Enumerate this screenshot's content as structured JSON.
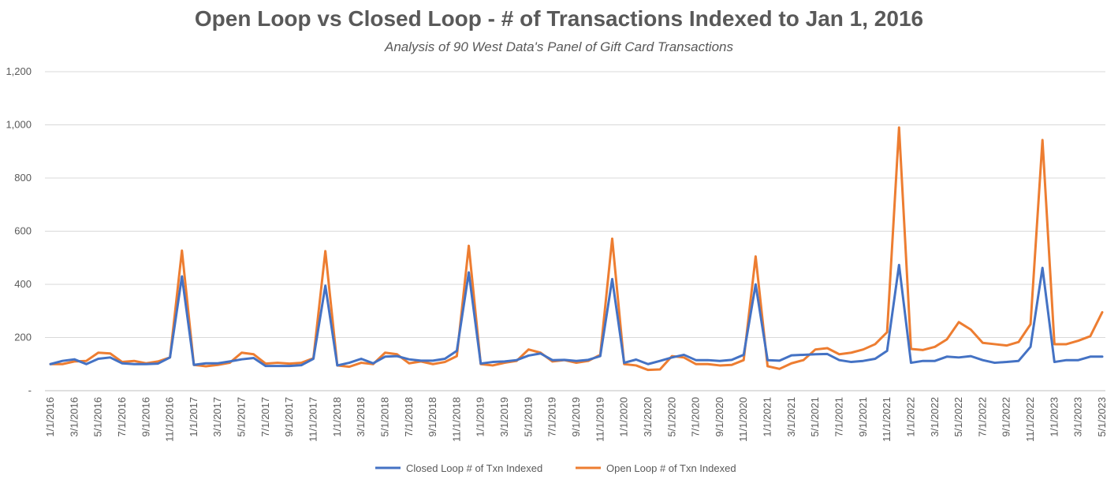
{
  "chart_data": {
    "type": "line",
    "title": "Open Loop vs Closed Loop - # of Transactions Indexed to Jan 1, 2016",
    "subtitle": "Analysis of 90 West Data's Panel of Gift Card Transactions",
    "xlabel": "",
    "ylabel": "",
    "ylim": [
      0,
      1200
    ],
    "y_ticks": [
      0,
      200,
      400,
      600,
      800,
      1000,
      1200
    ],
    "y_tick_labels": [
      "-",
      "200",
      "400",
      "600",
      "800",
      "1,000",
      "1,200"
    ],
    "grid": true,
    "legend_position": "bottom",
    "x_tick_labels": [
      "1/1/2016",
      "3/1/2016",
      "5/1/2016",
      "7/1/2016",
      "9/1/2016",
      "11/1/2016",
      "1/1/2017",
      "3/1/2017",
      "5/1/2017",
      "7/1/2017",
      "9/1/2017",
      "11/1/2017",
      "1/1/2018",
      "3/1/2018",
      "5/1/2018",
      "7/1/2018",
      "9/1/2018",
      "11/1/2018",
      "1/1/2019",
      "3/1/2019",
      "5/1/2019",
      "7/1/2019",
      "9/1/2019",
      "11/1/2019",
      "1/1/2020",
      "3/1/2020",
      "5/1/2020",
      "7/1/2020",
      "9/1/2020",
      "11/1/2020",
      "1/1/2021",
      "3/1/2021",
      "5/1/2021",
      "7/1/2021",
      "9/1/2021",
      "11/1/2021",
      "1/1/2022",
      "3/1/2022",
      "5/1/2022",
      "7/1/2022",
      "9/1/2022",
      "11/1/2022",
      "1/1/2023",
      "3/1/2023",
      "5/1/2023"
    ],
    "series": [
      {
        "name": "Closed Loop # of Txn Indexed",
        "color": "#4472C4",
        "values": [
          100,
          112,
          118,
          100,
          120,
          125,
          103,
          100,
          100,
          102,
          125,
          430,
          97,
          103,
          103,
          110,
          118,
          123,
          93,
          93,
          93,
          96,
          120,
          395,
          95,
          105,
          120,
          103,
          128,
          130,
          118,
          113,
          113,
          120,
          150,
          445,
          102,
          108,
          110,
          115,
          132,
          140,
          115,
          116,
          112,
          116,
          130,
          420,
          105,
          117,
          100,
          112,
          125,
          135,
          115,
          115,
          112,
          116,
          135,
          400,
          115,
          113,
          133,
          135,
          137,
          138,
          115,
          108,
          112,
          120,
          150,
          473,
          105,
          112,
          112,
          128,
          125,
          130,
          115,
          105,
          108,
          112,
          165,
          462,
          108,
          115,
          115,
          128,
          128
        ],
        "labels": []
      },
      {
        "name": "Open Loop # of Txn Indexed",
        "color": "#ED7D31",
        "values": [
          100,
          100,
          110,
          112,
          143,
          140,
          108,
          112,
          103,
          110,
          125,
          527,
          97,
          92,
          97,
          105,
          143,
          137,
          102,
          105,
          102,
          105,
          122,
          525,
          95,
          90,
          105,
          100,
          143,
          137,
          103,
          110,
          100,
          108,
          130,
          545,
          100,
          95,
          105,
          112,
          155,
          143,
          110,
          115,
          105,
          112,
          135,
          572,
          100,
          95,
          78,
          80,
          130,
          125,
          100,
          100,
          95,
          97,
          115,
          505,
          92,
          82,
          103,
          115,
          155,
          160,
          137,
          143,
          155,
          175,
          220,
          990,
          157,
          153,
          165,
          193,
          258,
          230,
          180,
          175,
          170,
          183,
          250,
          943,
          175,
          175,
          188,
          205,
          295
        ],
        "labels": []
      }
    ]
  }
}
